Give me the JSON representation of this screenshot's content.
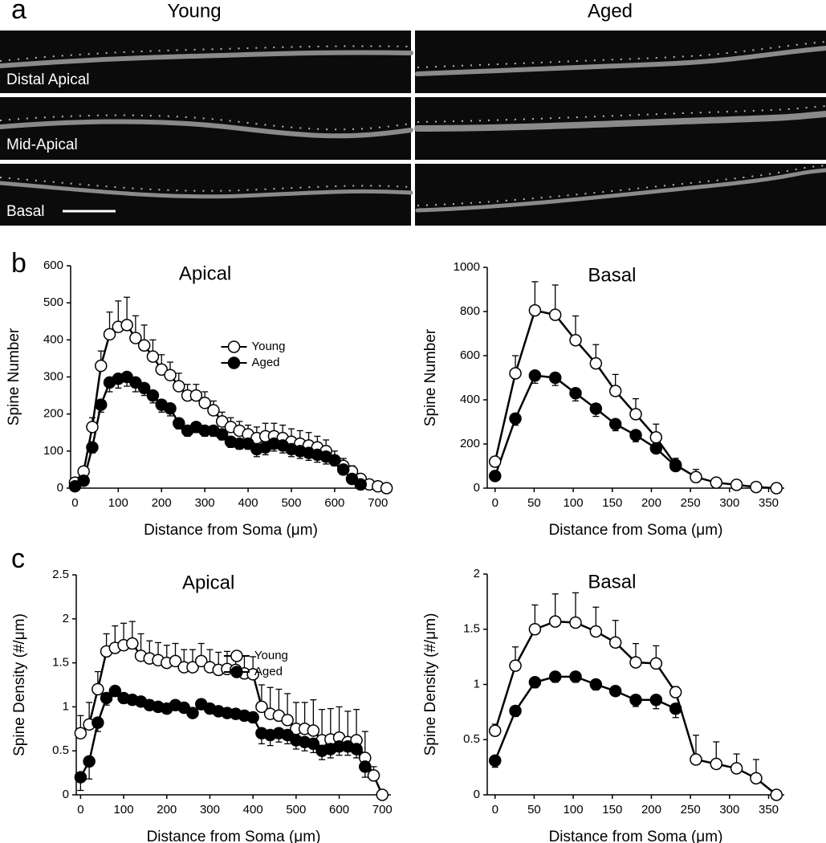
{
  "figure": {
    "panel_labels": [
      "a",
      "b",
      "c"
    ],
    "image_columns": [
      "Young",
      "Aged"
    ],
    "image_rows": [
      "Distal Apical",
      "Mid-Apical",
      "Basal"
    ]
  },
  "chart_data": [
    {
      "type": "line",
      "title": "Apical",
      "x_label": "Distance from Soma (μm)",
      "y_label": "Spine Number",
      "x": [
        0,
        20,
        40,
        60,
        80,
        100,
        120,
        140,
        160,
        180,
        200,
        220,
        240,
        260,
        280,
        300,
        320,
        340,
        360,
        380,
        400,
        420,
        440,
        460,
        480,
        500,
        520,
        540,
        560,
        580,
        600,
        620,
        640,
        660,
        680,
        700,
        720
      ],
      "series": [
        {
          "name": "Young",
          "color": "#ffffff",
          "values": [
            15,
            45,
            165,
            330,
            415,
            435,
            440,
            405,
            385,
            355,
            320,
            305,
            275,
            250,
            250,
            230,
            210,
            180,
            165,
            155,
            145,
            135,
            140,
            140,
            135,
            125,
            120,
            115,
            110,
            100,
            75,
            60,
            45,
            25,
            10,
            5,
            0
          ],
          "errors": [
            5,
            10,
            25,
            40,
            60,
            70,
            75,
            60,
            55,
            45,
            40,
            35,
            35,
            30,
            30,
            30,
            25,
            25,
            25,
            25,
            25,
            30,
            35,
            35,
            35,
            35,
            35,
            35,
            30,
            30,
            25,
            20,
            15,
            10,
            5,
            5,
            5
          ]
        },
        {
          "name": "Aged",
          "color": "#000000",
          "values": [
            5,
            20,
            110,
            225,
            285,
            295,
            300,
            285,
            270,
            250,
            225,
            215,
            175,
            155,
            165,
            155,
            155,
            145,
            125,
            120,
            120,
            105,
            110,
            120,
            115,
            105,
            100,
            95,
            90,
            85,
            75,
            50,
            25,
            10,
            null,
            null,
            null
          ],
          "errors": [
            3,
            8,
            15,
            20,
            25,
            25,
            25,
            25,
            20,
            20,
            20,
            20,
            15,
            15,
            15,
            15,
            15,
            15,
            15,
            15,
            15,
            20,
            20,
            20,
            20,
            20,
            20,
            20,
            20,
            20,
            15,
            10,
            8,
            5,
            null,
            null,
            null
          ]
        }
      ],
      "xlim": [
        -10,
        730
      ],
      "xticks": [
        0,
        100,
        200,
        300,
        400,
        500,
        600,
        700
      ],
      "ylim": [
        0,
        600
      ],
      "yticks": [
        0,
        100,
        200,
        300,
        400,
        500,
        600
      ],
      "legend": "center",
      "grid": false
    },
    {
      "type": "line",
      "title": "Basal",
      "x_label": "Distance from Soma (μm)",
      "y_label": "Spine Number",
      "x": [
        0,
        26,
        51,
        77,
        103,
        129,
        154,
        180,
        206,
        231,
        257,
        283,
        309,
        334,
        360
      ],
      "series": [
        {
          "color": "#ffffff",
          "values": [
            120,
            520,
            805,
            785,
            670,
            565,
            440,
            335,
            230,
            105,
            50,
            25,
            15,
            5,
            0
          ],
          "errors": [
            20,
            80,
            130,
            135,
            110,
            85,
            75,
            70,
            60,
            30,
            35,
            15,
            10,
            5,
            5
          ]
        },
        {
          "color": "#000000",
          "values": [
            55,
            315,
            510,
            500,
            430,
            360,
            290,
            240,
            180,
            100,
            null,
            null,
            null,
            null,
            null
          ],
          "errors": [
            15,
            30,
            35,
            35,
            35,
            35,
            30,
            30,
            20,
            20,
            null,
            null,
            null,
            null,
            null
          ]
        }
      ],
      "xlim": [
        -10,
        370
      ],
      "xticks": [
        0,
        50,
        100,
        150,
        200,
        250,
        300,
        350
      ],
      "ylim": [
        0,
        1000
      ],
      "yticks": [
        0,
        200,
        400,
        600,
        800,
        1000
      ],
      "grid": false
    },
    {
      "type": "line",
      "title": "Apical",
      "x_label": "Distance from Soma (μm)",
      "y_label": "Spine Density (#/μm)",
      "x": [
        0,
        20,
        40,
        60,
        80,
        100,
        120,
        140,
        160,
        180,
        200,
        220,
        240,
        260,
        280,
        300,
        320,
        340,
        360,
        380,
        400,
        420,
        440,
        460,
        480,
        500,
        520,
        540,
        560,
        580,
        600,
        620,
        640,
        660,
        680,
        700
      ],
      "series": [
        {
          "name": "Young",
          "color": "#ffffff",
          "values": [
            0.7,
            0.8,
            1.2,
            1.63,
            1.67,
            1.7,
            1.72,
            1.58,
            1.55,
            1.53,
            1.5,
            1.52,
            1.45,
            1.45,
            1.52,
            1.45,
            1.42,
            1.43,
            1.42,
            1.38,
            1.37,
            1.0,
            0.92,
            0.9,
            0.85,
            0.75,
            0.75,
            0.73,
            0.62,
            0.63,
            0.65,
            0.6,
            0.62,
            0.42,
            0.22,
            0
          ],
          "errors": [
            0.2,
            0.25,
            0.2,
            0.2,
            0.25,
            0.25,
            0.25,
            0.25,
            0.2,
            0.2,
            0.2,
            0.2,
            0.2,
            0.2,
            0.2,
            0.2,
            0.2,
            0.2,
            0.2,
            0.2,
            0.2,
            0.25,
            0.3,
            0.3,
            0.3,
            0.3,
            0.3,
            0.35,
            0.35,
            0.35,
            0.35,
            0.35,
            0.35,
            0.3,
            0.1,
            0.02
          ]
        },
        {
          "name": "Aged",
          "color": "#000000",
          "values": [
            0.2,
            0.38,
            0.82,
            1.1,
            1.18,
            1.1,
            1.08,
            1.06,
            1.02,
            1.0,
            0.98,
            1.02,
            0.99,
            0.93,
            1.03,
            0.98,
            0.95,
            0.93,
            0.92,
            0.9,
            0.88,
            0.7,
            0.68,
            0.7,
            0.68,
            0.62,
            0.6,
            0.58,
            0.5,
            0.52,
            0.55,
            0.55,
            0.52,
            0.32,
            null,
            null
          ],
          "errors": [
            0.15,
            0.2,
            0.1,
            0.08,
            0.06,
            0.06,
            0.05,
            0.05,
            0.05,
            0.05,
            0.05,
            0.05,
            0.05,
            0.05,
            0.05,
            0.05,
            0.05,
            0.05,
            0.05,
            0.05,
            0.05,
            0.12,
            0.12,
            0.1,
            0.1,
            0.1,
            0.1,
            0.1,
            0.1,
            0.1,
            0.1,
            0.1,
            0.1,
            0.12,
            null,
            null
          ]
        }
      ],
      "xlim": [
        -10,
        720
      ],
      "xticks": [
        0,
        100,
        200,
        300,
        400,
        500,
        600,
        700
      ],
      "ylim": [
        0,
        2.5
      ],
      "yticks": [
        0,
        0.5,
        1,
        1.5,
        2,
        2.5
      ],
      "legend": "center",
      "grid": false
    },
    {
      "type": "line",
      "title": "Basal",
      "x_label": "Distance from Soma (μm)",
      "y_label": "Spine Density (#/μm)",
      "x": [
        0,
        26,
        51,
        77,
        103,
        129,
        154,
        180,
        206,
        231,
        257,
        283,
        309,
        334,
        360
      ],
      "series": [
        {
          "color": "#ffffff",
          "values": [
            0.58,
            1.17,
            1.5,
            1.57,
            1.56,
            1.48,
            1.38,
            1.2,
            1.19,
            0.93,
            0.32,
            0.28,
            0.24,
            0.15,
            0
          ],
          "errors": [
            0.06,
            0.17,
            0.22,
            0.25,
            0.27,
            0.22,
            0.2,
            0.17,
            0.16,
            0.05,
            0.22,
            0.2,
            0.13,
            0.17,
            0.01
          ]
        },
        {
          "color": "#000000",
          "values": [
            0.31,
            0.76,
            1.02,
            1.07,
            1.07,
            1.0,
            0.94,
            0.86,
            0.86,
            0.78,
            null,
            null,
            null,
            null,
            null
          ],
          "errors": [
            0.06,
            0.05,
            0.05,
            0.05,
            0.05,
            0.05,
            0.04,
            0.06,
            0.08,
            0.08,
            null,
            null,
            null,
            null,
            null
          ]
        }
      ],
      "xlim": [
        -10,
        370
      ],
      "xticks": [
        0,
        50,
        100,
        150,
        200,
        250,
        300,
        350
      ],
      "ylim": [
        0,
        2
      ],
      "yticks": [
        0,
        0.5,
        1,
        1.5,
        2
      ],
      "grid": false
    }
  ]
}
